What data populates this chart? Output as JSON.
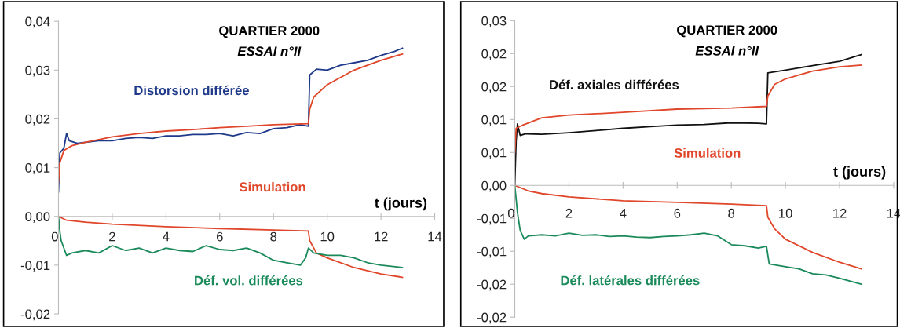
{
  "chart_data": [
    {
      "type": "line",
      "title": "QUARTIER 2000",
      "subtitle": "ESSAI n°II",
      "xlabel": "t (jours)",
      "xlim": [
        0,
        14
      ],
      "xticks": [
        0,
        2,
        4,
        6,
        8,
        10,
        12,
        14
      ],
      "ylim": [
        -0.02,
        0.04
      ],
      "yticks": [
        {
          "value": -0.02,
          "label": "-0,02"
        },
        {
          "value": -0.01,
          "label": "-0,01"
        },
        {
          "value": 0,
          "label": "0,00"
        },
        {
          "value": 0.01,
          "label": "0,01"
        },
        {
          "value": 0.02,
          "label": "0,02"
        },
        {
          "value": 0.03,
          "label": "0,03"
        },
        {
          "value": 0.04,
          "label": "0,04"
        }
      ],
      "grid": false,
      "legend": false,
      "marker": "none",
      "line_style": "solid",
      "series": [
        {
          "name": "Distorsion différée",
          "color": "#1f3a8a",
          "x": [
            0,
            0.05,
            0.2,
            0.3,
            0.4,
            0.7,
            1,
            1.5,
            2,
            2.5,
            3,
            3.5,
            4,
            4.5,
            5,
            5.5,
            6,
            6.5,
            7,
            7.5,
            8,
            8.5,
            9,
            9.3,
            9.35,
            9.6,
            10,
            10.5,
            11,
            11.5,
            12,
            12.5,
            12.8
          ],
          "values": [
            0.005,
            0.013,
            0.014,
            0.017,
            0.0155,
            0.015,
            0.0152,
            0.0155,
            0.0155,
            0.016,
            0.0162,
            0.016,
            0.0165,
            0.0165,
            0.0168,
            0.0168,
            0.017,
            0.0165,
            0.0172,
            0.017,
            0.018,
            0.0182,
            0.0188,
            0.0185,
            0.029,
            0.0302,
            0.03,
            0.031,
            0.0315,
            0.032,
            0.033,
            0.0338,
            0.0345
          ]
        },
        {
          "name": "Simulation",
          "color": "#e0462a",
          "x": [
            0,
            0.05,
            0.2,
            0.5,
            1,
            2,
            3,
            4,
            5,
            6,
            7,
            8,
            9.3,
            9.35,
            9.5,
            10,
            11,
            12,
            12.8
          ],
          "values": [
            0.007,
            0.011,
            0.0135,
            0.0145,
            0.0152,
            0.0163,
            0.017,
            0.0175,
            0.0178,
            0.0182,
            0.0185,
            0.0188,
            0.019,
            0.022,
            0.0245,
            0.027,
            0.03,
            0.032,
            0.0333
          ]
        },
        {
          "color": "#e0462a",
          "x": [
            0,
            0.3,
            1,
            2,
            4,
            6,
            8,
            9.3,
            9.35,
            9.6,
            10,
            11,
            12,
            12.8
          ],
          "values": [
            0,
            -0.0008,
            -0.0012,
            -0.0016,
            -0.0021,
            -0.0025,
            -0.0028,
            -0.003,
            -0.005,
            -0.0075,
            -0.0085,
            -0.0105,
            -0.0118,
            -0.0125
          ]
        },
        {
          "name": "Déf. vol. différées",
          "color": "#1a8a5a",
          "x": [
            0,
            0.05,
            0.1,
            0.3,
            0.5,
            1,
            1.5,
            2,
            2.5,
            3,
            3.5,
            4,
            4.5,
            5,
            5.5,
            6,
            6.5,
            7,
            7.5,
            8,
            8.5,
            9,
            9.2,
            9.3,
            9.5,
            10,
            10.5,
            11,
            11.5,
            12,
            12.8
          ],
          "values": [
            0,
            -0.003,
            -0.005,
            -0.008,
            -0.0075,
            -0.007,
            -0.0075,
            -0.006,
            -0.007,
            -0.0065,
            -0.0075,
            -0.0065,
            -0.007,
            -0.0072,
            -0.006,
            -0.0068,
            -0.007,
            -0.0065,
            -0.0075,
            -0.009,
            -0.0095,
            -0.01,
            -0.0085,
            -0.0065,
            -0.0075,
            -0.008,
            -0.008,
            -0.0085,
            -0.0095,
            -0.01,
            -0.0105
          ]
        }
      ]
    },
    {
      "type": "line",
      "title": "QUARTIER 2000",
      "subtitle": "ESSAI n°II",
      "xlabel": "t (jours)",
      "xlim": [
        0,
        14
      ],
      "xticks": [
        0,
        2,
        4,
        6,
        8,
        10,
        12,
        14
      ],
      "ylim": [
        -0.024,
        0.03
      ],
      "yticks": [
        {
          "value": -0.024,
          "label": "-0,02"
        },
        {
          "value": -0.018,
          "label": "-0,02"
        },
        {
          "value": -0.012,
          "label": "-0,01"
        },
        {
          "value": -0.006,
          "label": "-0,01"
        },
        {
          "value": 0,
          "label": "0,00"
        },
        {
          "value": 0.006,
          "label": "0,01"
        },
        {
          "value": 0.012,
          "label": "0,01"
        },
        {
          "value": 0.018,
          "label": "0,02"
        },
        {
          "value": 0.024,
          "label": "0,02"
        },
        {
          "value": 0.03,
          "label": "0,03"
        }
      ],
      "grid": false,
      "legend": false,
      "marker": "none",
      "line_style": "solid",
      "series": [
        {
          "name": "Déf. axiales différées",
          "color": "#111111",
          "x": [
            0,
            0.05,
            0.1,
            0.2,
            0.4,
            1,
            2,
            3,
            4,
            5,
            6,
            7,
            8,
            9,
            9.3,
            9.35,
            10,
            11,
            12,
            12.8
          ],
          "values": [
            0,
            0.008,
            0.0112,
            0.0091,
            0.0094,
            0.0093,
            0.0096,
            0.01,
            0.0104,
            0.0107,
            0.011,
            0.0111,
            0.0114,
            0.0113,
            0.0112,
            0.0205,
            0.021,
            0.0218,
            0.0226,
            0.0238
          ]
        },
        {
          "name": "Simulation",
          "color": "#e0462a",
          "x": [
            0,
            0.05,
            0.3,
            1,
            2,
            4,
            6,
            8,
            9.3,
            9.35,
            9.6,
            10,
            11,
            12,
            12.8
          ],
          "values": [
            0.006,
            0.0104,
            0.011,
            0.0123,
            0.0128,
            0.0133,
            0.0139,
            0.0141,
            0.0144,
            0.0163,
            0.0184,
            0.0194,
            0.0208,
            0.0216,
            0.0219
          ]
        },
        {
          "color": "#e0462a",
          "x": [
            0,
            0.5,
            1,
            2,
            4,
            6,
            8,
            9.3,
            9.35,
            9.6,
            10,
            11,
            12,
            12.8
          ],
          "values": [
            0,
            -0.001,
            -0.0015,
            -0.0021,
            -0.0028,
            -0.0031,
            -0.0034,
            -0.0037,
            -0.0058,
            -0.0079,
            -0.0098,
            -0.0122,
            -0.014,
            -0.0152
          ]
        },
        {
          "name": "Déf. latérales différées",
          "color": "#1a8a5a",
          "x": [
            0,
            0.1,
            0.2,
            0.35,
            0.5,
            1,
            1.5,
            2,
            2.5,
            3,
            3.5,
            4,
            4.5,
            5,
            5.5,
            6,
            6.5,
            7,
            7.5,
            8,
            8.5,
            9,
            9.3,
            9.4,
            10,
            10.5,
            11,
            11.5,
            12,
            12.8
          ],
          "values": [
            0,
            -0.005,
            -0.0082,
            -0.0098,
            -0.0092,
            -0.009,
            -0.0092,
            -0.0087,
            -0.0091,
            -0.009,
            -0.0093,
            -0.0092,
            -0.0094,
            -0.0095,
            -0.0093,
            -0.0092,
            -0.009,
            -0.0087,
            -0.0092,
            -0.0108,
            -0.011,
            -0.0114,
            -0.0111,
            -0.0143,
            -0.0148,
            -0.0152,
            -0.0161,
            -0.0163,
            -0.0169,
            -0.018
          ]
        }
      ]
    }
  ]
}
